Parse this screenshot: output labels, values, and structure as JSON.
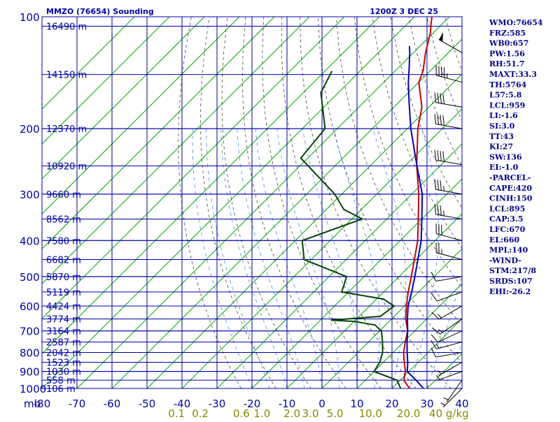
{
  "header": {
    "station": "MMZO (76654) Sounding",
    "time": "1200Z  3 DEC 25"
  },
  "indices": [
    "WMO:76654",
    "FRZ:585",
    "WB0:657",
    "PW:1.56",
    "RH:51.7",
    "MAXT:33.3",
    "TH:5764",
    "L57:5.8",
    "LCL:959",
    "LI:-1.6",
    "SI:3.0",
    "TT:43",
    "KI:27",
    "SW:136",
    "EI:-1.0",
    "-PARCEL-",
    "CAPE:420",
    "CINH:150",
    "LCL:895",
    "CAP:3.5",
    "LFC:670",
    "EL:660",
    "MPL:140",
    "-WIND-",
    "STM:217/8",
    "SRDS:107",
    "EHI:-26.2"
  ],
  "colors": {
    "frame": "#0000aa",
    "isotherm": "#00aa00",
    "dry_adiabat": "#444444",
    "moist_adiabat": "#5599ee",
    "temperature": "#cc0000",
    "dewpoint": "#004400",
    "parcel": "#0000cc",
    "mixing_label": "#888800"
  },
  "chart_data": {
    "type": "line",
    "y_axis": {
      "label": "mb",
      "scale": "log",
      "range": [
        1000,
        100
      ],
      "ticks": [
        100,
        200,
        300,
        400,
        500,
        600,
        700,
        800,
        900,
        1000
      ]
    },
    "x_axis": {
      "range": [
        -80,
        40
      ],
      "ticks": [
        -80,
        -70,
        -60,
        -50,
        -40,
        -30,
        -20,
        -10,
        0,
        10,
        20,
        30,
        40
      ],
      "tick_labels": [
        "-80",
        "-70",
        "-60",
        "-50",
        "-40",
        "-30",
        "-20",
        "-10",
        "0",
        "10",
        "20",
        "30",
        "40"
      ]
    },
    "mixing_ratio_labels": [
      "0.1",
      "0.2",
      "0.6",
      "1.0",
      "2.0",
      "3.0",
      "5.0",
      "10.0",
      "20.0",
      "40 g/kg"
    ],
    "mixing_ratio_values": [
      0.1,
      0.2,
      0.6,
      1.0,
      2.0,
      3.0,
      5.0,
      10.0,
      20.0,
      40.0
    ],
    "height_labels": [
      {
        "p": 106,
        "text": "16490 m"
      },
      {
        "p": 143,
        "text": "14150 m"
      },
      {
        "p": 200,
        "text": "12370 m"
      },
      {
        "p": 252,
        "text": "10920 m"
      },
      {
        "p": 300,
        "text": "9660 m"
      },
      {
        "p": 350,
        "text": "8562 m"
      },
      {
        "p": 400,
        "text": "7580 m"
      },
      {
        "p": 450,
        "text": "6682 m"
      },
      {
        "p": 500,
        "text": "5870 m"
      },
      {
        "p": 550,
        "text": "5119 m"
      },
      {
        "p": 600,
        "text": "4424 m"
      },
      {
        "p": 650,
        "text": "3774 m"
      },
      {
        "p": 700,
        "text": "3164 m"
      },
      {
        "p": 750,
        "text": "2587 m"
      },
      {
        "p": 800,
        "text": "2042 m"
      },
      {
        "p": 850,
        "text": "1523 m"
      },
      {
        "p": 900,
        "text": "1030 m"
      },
      {
        "p": 950,
        "text": "558 m"
      },
      {
        "p": 1000,
        "text": "106 m"
      }
    ],
    "series": [
      {
        "key": "temperature",
        "points": [
          [
            1000,
            25.0
          ],
          [
            950,
            21.0
          ],
          [
            900,
            19.0
          ],
          [
            850,
            16.0
          ],
          [
            800,
            13.0
          ],
          [
            750,
            10.5
          ],
          [
            700,
            8.0
          ],
          [
            650,
            4.0
          ],
          [
            600,
            0.5
          ],
          [
            550,
            -3.0
          ],
          [
            500,
            -6.5
          ],
          [
            450,
            -10.5
          ],
          [
            400,
            -15.0
          ],
          [
            350,
            -21.0
          ],
          [
            300,
            -28.0
          ],
          [
            250,
            -37.0
          ],
          [
            200,
            -47.0
          ],
          [
            175,
            -52.0
          ],
          [
            150,
            -60.0
          ],
          [
            140,
            -62.0
          ],
          [
            125,
            -66.5
          ],
          [
            110,
            -71.0
          ],
          [
            105,
            -73.0
          ],
          [
            100,
            -75.0
          ]
        ]
      },
      {
        "key": "dewpoint",
        "points": [
          [
            1000,
            22.5
          ],
          [
            950,
            19.0
          ],
          [
            900,
            10.0
          ],
          [
            850,
            9.0
          ],
          [
            800,
            7.0
          ],
          [
            750,
            4.0
          ],
          [
            700,
            0.5
          ],
          [
            675,
            -3.0
          ],
          [
            660,
            -10.0
          ],
          [
            655,
            -17.0
          ],
          [
            640,
            -4.0
          ],
          [
            600,
            -3.0
          ],
          [
            575,
            -8.0
          ],
          [
            550,
            -22.0
          ],
          [
            500,
            -25.0
          ],
          [
            450,
            -42.0
          ],
          [
            400,
            -48.0
          ],
          [
            350,
            -37.0
          ],
          [
            330,
            -45.0
          ],
          [
            300,
            -52.0
          ],
          [
            240,
            -72.0
          ],
          [
            200,
            -73.5
          ],
          [
            160,
            -85.0
          ],
          [
            140,
            -88.0
          ]
        ]
      },
      {
        "key": "parcel",
        "points": [
          [
            1000,
            29.0
          ],
          [
            950,
            24.5
          ],
          [
            900,
            19.5
          ],
          [
            850,
            17.0
          ],
          [
            800,
            14.0
          ],
          [
            750,
            11.0
          ],
          [
            700,
            8.0
          ],
          [
            650,
            4.5
          ],
          [
            600,
            1.0
          ],
          [
            550,
            -2.0
          ],
          [
            500,
            -5.5
          ],
          [
            450,
            -9.5
          ],
          [
            400,
            -14.0
          ],
          [
            350,
            -20.0
          ],
          [
            300,
            -27.0
          ],
          [
            250,
            -37.0
          ],
          [
            200,
            -49.0
          ],
          [
            170,
            -57.0
          ],
          [
            150,
            -63.0
          ],
          [
            140,
            -66.0
          ],
          [
            125,
            -71.0
          ],
          [
            120,
            -73.0
          ]
        ]
      }
    ],
    "wind_barbs": [
      {
        "p": 1000,
        "dir": 225,
        "kt": 5
      },
      {
        "p": 950,
        "dir": 215,
        "kt": 5
      },
      {
        "p": 900,
        "dir": 250,
        "kt": 5
      },
      {
        "p": 850,
        "dir": 240,
        "kt": 5
      },
      {
        "p": 800,
        "dir": 260,
        "kt": 10
      },
      {
        "p": 750,
        "dir": 255,
        "kt": 15
      },
      {
        "p": 700,
        "dir": 245,
        "kt": 10
      },
      {
        "p": 650,
        "dir": 235,
        "kt": 15
      },
      {
        "p": 600,
        "dir": 240,
        "kt": 15
      },
      {
        "p": 550,
        "dir": 250,
        "kt": 10
      },
      {
        "p": 500,
        "dir": 260,
        "kt": 10
      },
      {
        "p": 450,
        "dir": 285,
        "kt": 25
      },
      {
        "p": 400,
        "dir": 285,
        "kt": 30
      },
      {
        "p": 350,
        "dir": 280,
        "kt": 35
      },
      {
        "p": 300,
        "dir": 280,
        "kt": 35
      },
      {
        "p": 250,
        "dir": 280,
        "kt": 40
      },
      {
        "p": 200,
        "dir": 280,
        "kt": 40
      },
      {
        "p": 175,
        "dir": 280,
        "kt": 40
      },
      {
        "p": 150,
        "dir": 285,
        "kt": 45
      },
      {
        "p": 125,
        "dir": 300,
        "kt": 50
      },
      {
        "p": 100,
        "dir": 300,
        "kt": 35
      }
    ]
  }
}
